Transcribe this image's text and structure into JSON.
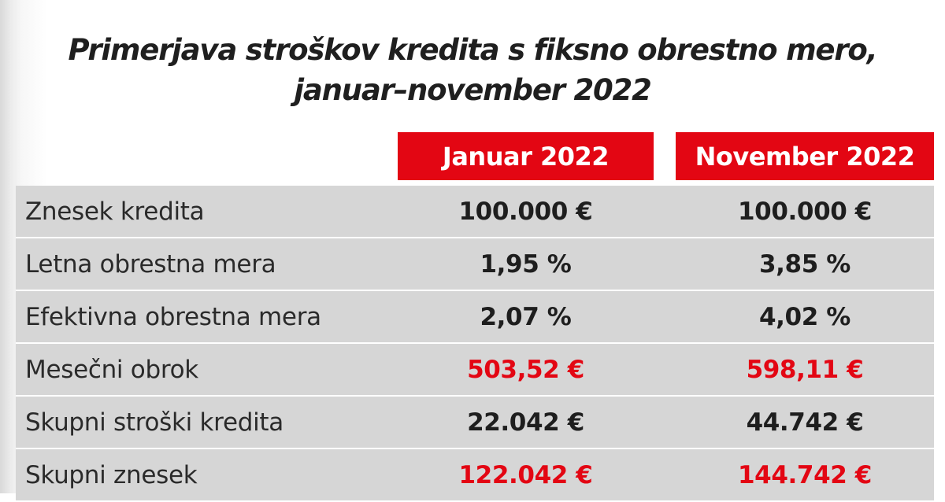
{
  "title": {
    "line1": "Primerjava stroškov kredita s fiksno obrestno mero,",
    "line2": "januar–november 2022"
  },
  "columns": [
    "Januar 2022",
    "November 2022"
  ],
  "rows": [
    {
      "label": "Znesek kredita",
      "values": [
        "100.000 €",
        "100.000 €"
      ],
      "highlight": false
    },
    {
      "label": "Letna obrestna mera",
      "values": [
        "1,95 %",
        "3,85 %"
      ],
      "highlight": false
    },
    {
      "label": "Efektivna obrestna mera",
      "values": [
        "2,07 %",
        "4,02 %"
      ],
      "highlight": false
    },
    {
      "label": "Mesečni obrok",
      "values": [
        "503,52 €",
        "598,11 €"
      ],
      "highlight": true
    },
    {
      "label": "Skupni stroški kredita",
      "values": [
        "22.042 €",
        "44.742 €"
      ],
      "highlight": false
    },
    {
      "label": "Skupni znesek",
      "values": [
        "122.042 €",
        "144.742 €"
      ],
      "highlight": true
    }
  ],
  "colors": {
    "accent_red": "#e30613",
    "row_grey": "#d6d6d6",
    "text_dark": "#1e1e1e"
  }
}
